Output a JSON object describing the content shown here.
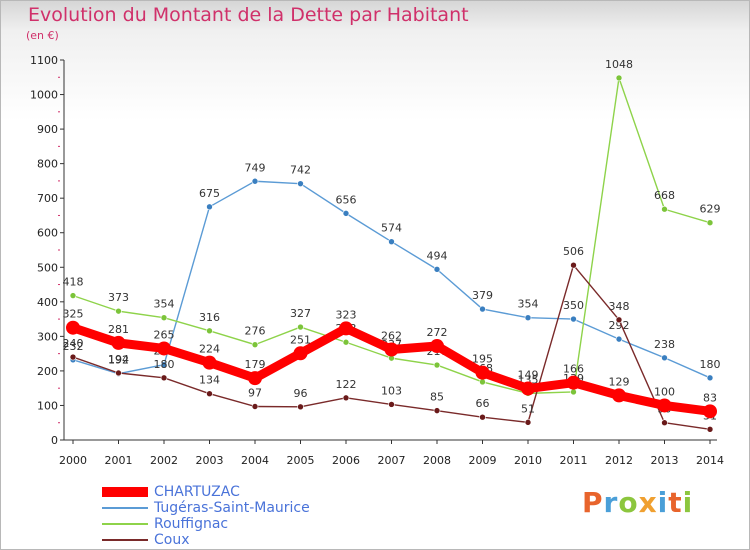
{
  "title": "Evolution du Montant de la Dette par Habitant",
  "subtitle": "(en €)",
  "brand": {
    "text": "Proxiti",
    "colors": [
      "#e8642c",
      "#4a9fd8",
      "#8cc63e",
      "#f0a030",
      "#4a9fd8",
      "#e8642c",
      "#8cc63e"
    ]
  },
  "chart_data": {
    "type": "line",
    "x": [
      "2000",
      "2001",
      "2002",
      "2003",
      "2004",
      "2005",
      "2006",
      "2007",
      "2008",
      "2009",
      "2010",
      "2011",
      "2012",
      "2013",
      "2014"
    ],
    "ylim": [
      0,
      1100
    ],
    "yticks": [
      0,
      100,
      200,
      300,
      400,
      500,
      600,
      700,
      800,
      900,
      1000,
      1100
    ],
    "grid": false,
    "legend_position": "bottom-left",
    "series": [
      {
        "name": "Tugéras-Saint-Maurice",
        "color": "#5b9bd5",
        "marker": "#3a7fc0",
        "values": [
          232,
          192,
          218,
          675,
          749,
          742,
          656,
          574,
          494,
          379,
          354,
          350,
          292,
          238,
          180
        ],
        "labels": [
          "232",
          "192",
          "218",
          "675",
          "749",
          "742",
          "656",
          "574",
          "494",
          "379",
          "354",
          "350",
          "292",
          "238",
          "180"
        ]
      },
      {
        "name": "Rouffignac",
        "color": "#8ed34a",
        "marker": "#7cc43a",
        "values": [
          418,
          373,
          354,
          316,
          276,
          327,
          283,
          237,
          217,
          168,
          135,
          139,
          1048,
          668,
          629
        ],
        "labels": [
          "418",
          "373",
          "354",
          "316",
          "276",
          "327",
          "283",
          "237",
          "217",
          "168",
          "135",
          "139",
          "1048",
          "668",
          "629"
        ]
      },
      {
        "name": "Coux",
        "color": "#7a2a2a",
        "marker": "#6a1a1a",
        "values": [
          240,
          194,
          180,
          134,
          97,
          96,
          122,
          103,
          85,
          66,
          51,
          506,
          348,
          50,
          31
        ],
        "labels": [
          "240",
          "194",
          "180",
          "134",
          "97",
          "96",
          "122",
          "103",
          "85",
          "66",
          "51",
          "506",
          "348",
          "50",
          "31"
        ]
      },
      {
        "name": "CHARTUZAC",
        "color": "#ff0000",
        "marker": "#ff0000",
        "thick": true,
        "values": [
          325,
          281,
          265,
          224,
          179,
          251,
          323,
          262,
          272,
          195,
          149,
          166,
          129,
          100,
          83
        ],
        "labels": [
          "325",
          "281",
          "265",
          "224",
          "179",
          "251",
          "323",
          "262",
          "272",
          "195",
          "149",
          "166",
          "129",
          "100",
          "83"
        ]
      }
    ],
    "legend_order": [
      "CHARTUZAC",
      "Tugéras-Saint-Maurice",
      "Rouffignac",
      "Coux"
    ]
  }
}
